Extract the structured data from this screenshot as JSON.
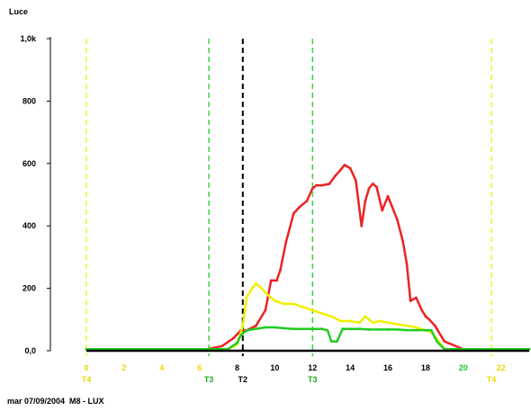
{
  "chart_data": {
    "type": "line",
    "ylabel": "Luce",
    "footer": "mar 07/09/2004  M8 - LUX",
    "xlim": [
      0,
      23.5
    ],
    "ylim": [
      0,
      1000
    ],
    "x_ticks": [
      {
        "v": 0,
        "label": "0",
        "color": "#e6d800"
      },
      {
        "v": 2,
        "label": "2",
        "color": "#e6d800"
      },
      {
        "v": 4,
        "label": "4",
        "color": "#e6d800"
      },
      {
        "v": 6,
        "label": "6",
        "color": "#e6d800"
      },
      {
        "v": 8,
        "label": "8",
        "color": "#000000"
      },
      {
        "v": 10,
        "label": "10",
        "color": "#000000"
      },
      {
        "v": 12,
        "label": "12",
        "color": "#000000"
      },
      {
        "v": 14,
        "label": "14",
        "color": "#000000"
      },
      {
        "v": 16,
        "label": "16",
        "color": "#000000"
      },
      {
        "v": 18,
        "label": "18",
        "color": "#000000"
      },
      {
        "v": 20,
        "label": "20",
        "color": "#22c722"
      },
      {
        "v": 22,
        "label": "22",
        "color": "#e6d800"
      }
    ],
    "y_ticks": [
      {
        "v": 0,
        "label": "0,0"
      },
      {
        "v": 200,
        "label": "200"
      },
      {
        "v": 400,
        "label": "400"
      },
      {
        "v": 600,
        "label": "600"
      },
      {
        "v": 800,
        "label": "800"
      },
      {
        "v": 1000,
        "label": "1,0k"
      }
    ],
    "markers": [
      {
        "x": 0,
        "label": "T4",
        "color": "#f0f000",
        "text_color": "#e6d800"
      },
      {
        "x": 6.5,
        "label": "T3",
        "color": "#22cc22",
        "text_color": "#22aa22"
      },
      {
        "x": 8.3,
        "label": "T2",
        "color": "#000000",
        "text_color": "#000000"
      },
      {
        "x": 12,
        "label": "T3",
        "color": "#22cc22",
        "text_color": "#22aa22"
      },
      {
        "x": 21.5,
        "label": "T4",
        "color": "#f0f000",
        "text_color": "#e6d800"
      }
    ],
    "series": [
      {
        "color": "#ee2222",
        "x": [
          0,
          6.4,
          7.2,
          7.8,
          8.2,
          8.5,
          9.0,
          9.5,
          9.8,
          10.1,
          10.3,
          10.6,
          11.0,
          11.3,
          11.7,
          12.0,
          12.2,
          12.5,
          12.9,
          13.2,
          13.5,
          13.7,
          14.0,
          14.3,
          14.6,
          14.8,
          15.0,
          15.2,
          15.4,
          15.7,
          16.0,
          16.2,
          16.5,
          16.8,
          17.0,
          17.2,
          17.5,
          17.8,
          18.0,
          18.2,
          18.5,
          19.0,
          20.0,
          23.5
        ],
        "y": [
          5,
          5,
          15,
          40,
          65,
          65,
          80,
          130,
          225,
          225,
          260,
          350,
          440,
          460,
          480,
          520,
          530,
          530,
          535,
          560,
          580,
          595,
          585,
          545,
          400,
          480,
          520,
          535,
          525,
          450,
          495,
          465,
          420,
          350,
          280,
          160,
          170,
          130,
          110,
          100,
          80,
          30,
          5,
          5
        ]
      },
      {
        "color": "#f0f000",
        "x": [
          0,
          7.5,
          8.0,
          8.3,
          8.5,
          8.8,
          9.0,
          9.3,
          9.6,
          10.0,
          10.5,
          11.0,
          11.5,
          12.0,
          12.5,
          13.0,
          13.5,
          14.0,
          14.5,
          14.8,
          15.2,
          15.6,
          16.0,
          16.5,
          17.0,
          17.5,
          18.0,
          18.3,
          18.7,
          19.0,
          23.5
        ],
        "y": [
          5,
          5,
          20,
          80,
          170,
          200,
          215,
          200,
          180,
          160,
          150,
          150,
          140,
          130,
          120,
          110,
          95,
          95,
          90,
          110,
          90,
          95,
          90,
          85,
          80,
          75,
          65,
          60,
          30,
          5,
          5
        ]
      },
      {
        "color": "#22cc22",
        "x": [
          0,
          7.5,
          8.0,
          8.2,
          8.5,
          9.0,
          9.5,
          10.0,
          10.5,
          11.0,
          11.5,
          12.0,
          12.5,
          12.8,
          13.0,
          13.3,
          13.6,
          14.0,
          14.5,
          15.0,
          15.5,
          16.0,
          16.5,
          17.0,
          17.5,
          18.0,
          18.3,
          18.6,
          19.0,
          23.5
        ],
        "y": [
          5,
          5,
          25,
          50,
          65,
          70,
          75,
          75,
          72,
          70,
          70,
          70,
          70,
          65,
          30,
          30,
          70,
          70,
          70,
          68,
          68,
          68,
          68,
          66,
          66,
          66,
          66,
          30,
          5,
          5
        ]
      },
      {
        "color": "#000000",
        "x": [
          0,
          23.5
        ],
        "y": [
          0,
          0
        ]
      }
    ]
  }
}
